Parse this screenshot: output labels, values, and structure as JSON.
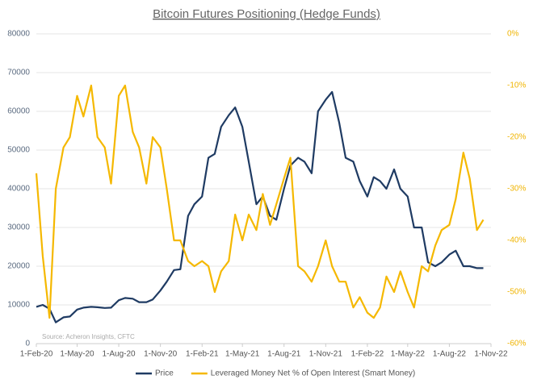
{
  "chart_data": {
    "type": "line",
    "title": "Bitcoin Futures Positioning (Hedge Funds)",
    "source": "Source: Acheron Insights, CFTC",
    "x": [
      "2020-02-01",
      "2020-02-15",
      "2020-03-01",
      "2020-03-15",
      "2020-04-01",
      "2020-04-15",
      "2020-05-01",
      "2020-05-15",
      "2020-06-01",
      "2020-06-15",
      "2020-07-01",
      "2020-07-15",
      "2020-08-01",
      "2020-08-15",
      "2020-09-01",
      "2020-09-15",
      "2020-10-01",
      "2020-10-15",
      "2020-11-01",
      "2020-11-15",
      "2020-12-01",
      "2020-12-15",
      "2021-01-01",
      "2021-01-15",
      "2021-02-01",
      "2021-02-15",
      "2021-03-01",
      "2021-03-15",
      "2021-04-01",
      "2021-04-15",
      "2021-05-01",
      "2021-05-15",
      "2021-06-01",
      "2021-06-15",
      "2021-07-01",
      "2021-07-15",
      "2021-08-01",
      "2021-08-15",
      "2021-09-01",
      "2021-09-15",
      "2021-10-01",
      "2021-10-15",
      "2021-11-01",
      "2021-11-15",
      "2021-12-01",
      "2021-12-15",
      "2022-01-01",
      "2022-01-15",
      "2022-02-01",
      "2022-02-15",
      "2022-03-01",
      "2022-03-15",
      "2022-04-01",
      "2022-04-15",
      "2022-05-01",
      "2022-05-15",
      "2022-06-01",
      "2022-06-15",
      "2022-07-01",
      "2022-07-15",
      "2022-08-01",
      "2022-08-15",
      "2022-09-01",
      "2022-09-15",
      "2022-10-01",
      "2022-10-15"
    ],
    "series": [
      {
        "name": "Price",
        "color": "#1f3b63",
        "axis": "y",
        "values": [
          9500,
          10000,
          9000,
          5500,
          6800,
          7000,
          8800,
          9300,
          9500,
          9400,
          9200,
          9300,
          11200,
          11800,
          11600,
          10700,
          10700,
          11400,
          13700,
          16000,
          19000,
          19200,
          33000,
          36000,
          38000,
          48000,
          49000,
          56000,
          59000,
          61000,
          56000,
          47000,
          36000,
          38000,
          33000,
          32000,
          40000,
          46000,
          48000,
          47000,
          44000,
          60000,
          63000,
          65000,
          57000,
          48000,
          47000,
          42000,
          38000,
          43000,
          42000,
          40000,
          45000,
          40000,
          38000,
          30000,
          30000,
          21000,
          20000,
          21000,
          23000,
          24000,
          20000,
          20000,
          19500,
          19500
        ]
      },
      {
        "name": "Leveraged Money Net % of Open Interest (Smart Money)",
        "color": "#f5b800",
        "axis": "y2",
        "values": [
          -27,
          -43,
          -55,
          -30,
          -22,
          -20,
          -12,
          -16,
          -10,
          -20,
          -22,
          -29,
          -12,
          -10,
          -19,
          -22,
          -29,
          -20,
          -22,
          -30,
          -40,
          -40,
          -44,
          -45,
          -44,
          -45,
          -50,
          -46,
          -44,
          -35,
          -40,
          -35,
          -38,
          -31,
          -37,
          -33,
          -28,
          -24,
          -45,
          -46,
          -48,
          -45,
          -40,
          -45,
          -48,
          -48,
          -53,
          -51,
          -54,
          -55,
          -53,
          -47,
          -50,
          -46,
          -50,
          -53,
          -45,
          -46,
          -41,
          -38,
          -37,
          -32,
          -23,
          -28,
          -38,
          -36
        ]
      }
    ],
    "xlim": [
      "2020-02-01",
      "2022-11-01"
    ],
    "xticks": [
      {
        "value": "2020-02-01",
        "label": "1-Feb-20"
      },
      {
        "value": "2020-05-01",
        "label": "1-May-20"
      },
      {
        "value": "2020-08-01",
        "label": "1-Aug-20"
      },
      {
        "value": "2020-11-01",
        "label": "1-Nov-20"
      },
      {
        "value": "2021-02-01",
        "label": "1-Feb-21"
      },
      {
        "value": "2021-05-01",
        "label": "1-May-21"
      },
      {
        "value": "2021-08-01",
        "label": "1-Aug-21"
      },
      {
        "value": "2021-11-01",
        "label": "1-Nov-21"
      },
      {
        "value": "2022-02-01",
        "label": "1-Feb-22"
      },
      {
        "value": "2022-05-01",
        "label": "1-May-22"
      },
      {
        "value": "2022-08-01",
        "label": "1-Aug-22"
      },
      {
        "value": "2022-11-01",
        "label": "1-Nov-22"
      }
    ],
    "ylim": [
      0,
      80000
    ],
    "yticks": [
      0,
      10000,
      20000,
      30000,
      40000,
      50000,
      60000,
      70000,
      80000
    ],
    "y2lim": [
      -60,
      0
    ],
    "y2ticks": [
      {
        "value": 0,
        "label": "0%"
      },
      {
        "value": -10,
        "label": "-10%"
      },
      {
        "value": -20,
        "label": "-20%"
      },
      {
        "value": -30,
        "label": "-30%"
      },
      {
        "value": -40,
        "label": "-40%"
      },
      {
        "value": -50,
        "label": "-50%"
      },
      {
        "value": -60,
        "label": "-60%"
      }
    ],
    "grid": true
  }
}
